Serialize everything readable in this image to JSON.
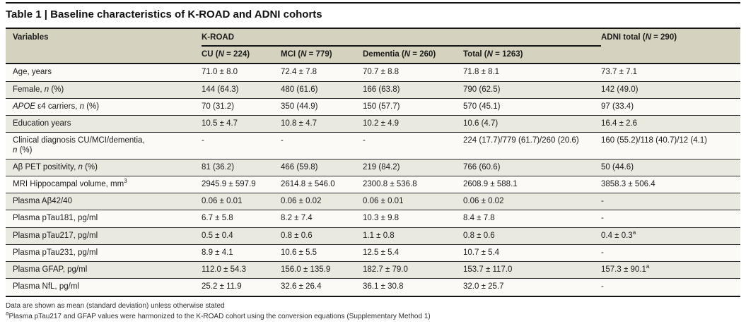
{
  "title": "Table 1 | Baseline characteristics of K-ROAD and ADNI cohorts",
  "header": {
    "variables": "Variables",
    "group": "K-ROAD",
    "adni": [
      {
        "t": "ADNI total ("
      },
      {
        "t": "N",
        "i": 1
      },
      {
        "t": " = 290)"
      }
    ],
    "subcolumns": [
      {
        "key": "cu",
        "segs": [
          {
            "t": "CU ("
          },
          {
            "t": "N",
            "i": 1
          },
          {
            "t": " = 224)"
          }
        ]
      },
      {
        "key": "mci",
        "segs": [
          {
            "t": "MCI ("
          },
          {
            "t": "N",
            "i": 1
          },
          {
            "t": " = 779)"
          }
        ]
      },
      {
        "key": "dementia",
        "segs": [
          {
            "t": "Dementia ("
          },
          {
            "t": "N",
            "i": 1
          },
          {
            "t": " = 260)"
          }
        ]
      },
      {
        "key": "total",
        "segs": [
          {
            "t": "Total ("
          },
          {
            "t": "N",
            "i": 1
          },
          {
            "t": " = 1263)"
          }
        ]
      }
    ]
  },
  "rows": [
    {
      "shaded": false,
      "label": [
        {
          "t": "Age, years"
        }
      ],
      "values": [
        "71.0 ± 8.0",
        "72.4 ± 7.8",
        "70.7 ± 8.8",
        "71.8 ± 8.1",
        "73.7 ± 7.1"
      ]
    },
    {
      "shaded": true,
      "label": [
        {
          "t": "Female, "
        },
        {
          "t": "n",
          "i": 1
        },
        {
          "t": " (%)"
        }
      ],
      "values": [
        "144 (64.3)",
        "480 (61.6)",
        "166 (63.8)",
        "790 (62.5)",
        "142 (49.0)"
      ]
    },
    {
      "shaded": false,
      "label": [
        {
          "t": "APOE",
          "i": 1
        },
        {
          "t": " ε4 carriers, "
        },
        {
          "t": "n",
          "i": 1
        },
        {
          "t": " (%)"
        }
      ],
      "values": [
        "70 (31.2)",
        "350 (44.9)",
        "150 (57.7)",
        "570 (45.1)",
        "97 (33.4)"
      ]
    },
    {
      "shaded": true,
      "label": [
        {
          "t": "Education years"
        }
      ],
      "values": [
        "10.5 ± 4.7",
        "10.8 ± 4.7",
        "10.2 ± 4.9",
        "10.6 (4.7)",
        "16.4 ± 2.6"
      ]
    },
    {
      "shaded": false,
      "label": [
        {
          "t": "Clinical diagnosis CU/MCI/dementia,"
        },
        {
          "br": 1
        },
        {
          "t": "n",
          "i": 1
        },
        {
          "t": " (%)"
        }
      ],
      "values": [
        "-",
        "-",
        "-",
        "224 (17.7)/779 (61.7)/260 (20.6)",
        "160 (55.2)/118 (40.7)/12 (4.1)"
      ]
    },
    {
      "shaded": true,
      "label": [
        {
          "t": "Aβ PET positivity, "
        },
        {
          "t": "n",
          "i": 1
        },
        {
          "t": " (%)"
        }
      ],
      "values": [
        "81 (36.2)",
        "466 (59.8)",
        "219 (84.2)",
        "766 (60.6)",
        "50 (44.6)"
      ]
    },
    {
      "shaded": false,
      "label": [
        {
          "t": "MRI Hippocampal volume, mm"
        },
        {
          "t": "3",
          "sup": 1
        }
      ],
      "values": [
        "2945.9 ± 597.9",
        "2614.8 ± 546.0",
        "2300.8 ± 536.8",
        "2608.9 ± 588.1",
        "3858.3 ± 506.4"
      ]
    },
    {
      "shaded": true,
      "label": [
        {
          "t": "Plasma Aβ42/40"
        }
      ],
      "values": [
        "0.06 ± 0.01",
        "0.06 ± 0.02",
        "0.06 ± 0.01",
        "0.06 ± 0.02",
        "-"
      ]
    },
    {
      "shaded": false,
      "label": [
        {
          "t": "Plasma pTau181, pg/ml"
        }
      ],
      "values": [
        "6.7 ± 5.8",
        "8.2 ± 7.4",
        "10.3 ± 9.8",
        "8.4 ± 7.8",
        "-"
      ]
    },
    {
      "shaded": true,
      "label": [
        {
          "t": "Plasma pTau217, pg/ml"
        }
      ],
      "values": [
        "0.5 ± 0.4",
        "0.8 ± 0.6",
        "1.1 ± 0.8",
        "0.8 ± 0.6",
        {
          "t": "0.4 ± 0.3",
          "sup": "a"
        }
      ]
    },
    {
      "shaded": false,
      "label": [
        {
          "t": "Plasma pTau231, pg/ml"
        }
      ],
      "values": [
        "8.9 ± 4.1",
        "10.6 ± 5.5",
        "12.5 ± 5.4",
        "10.7 ± 5.4",
        "-"
      ]
    },
    {
      "shaded": true,
      "label": [
        {
          "t": "Plasma GFAP, pg/ml"
        }
      ],
      "values": [
        "112.0 ± 54.3",
        "156.0 ± 135.9",
        "182.7 ± 79.0",
        "153.7 ± 117.0",
        {
          "t": "157.3 ± 90.1",
          "sup": "a"
        }
      ]
    },
    {
      "shaded": false,
      "label": [
        {
          "t": "Plasma NfL, pg/ml"
        }
      ],
      "values": [
        "25.2 ± 11.9",
        "32.6 ± 26.4",
        "36.1 ± 30.8",
        "32.0 ± 25.7",
        "-"
      ]
    }
  ],
  "footnotes": [
    {
      "sup": "",
      "text": "Data are shown as mean (standard deviation) unless otherwise stated"
    },
    {
      "sup": "a",
      "text": "Plasma pTau217 and GFAP values were harmonized to the K-ROAD cohort using the conversion equations (Supplementary Method 1)"
    }
  ],
  "colors": {
    "header_bg": "#d5d2bf",
    "shaded_row_bg": "#eae9e0",
    "plain_row_bg": "#fbfaf6",
    "rule": "#141414"
  }
}
